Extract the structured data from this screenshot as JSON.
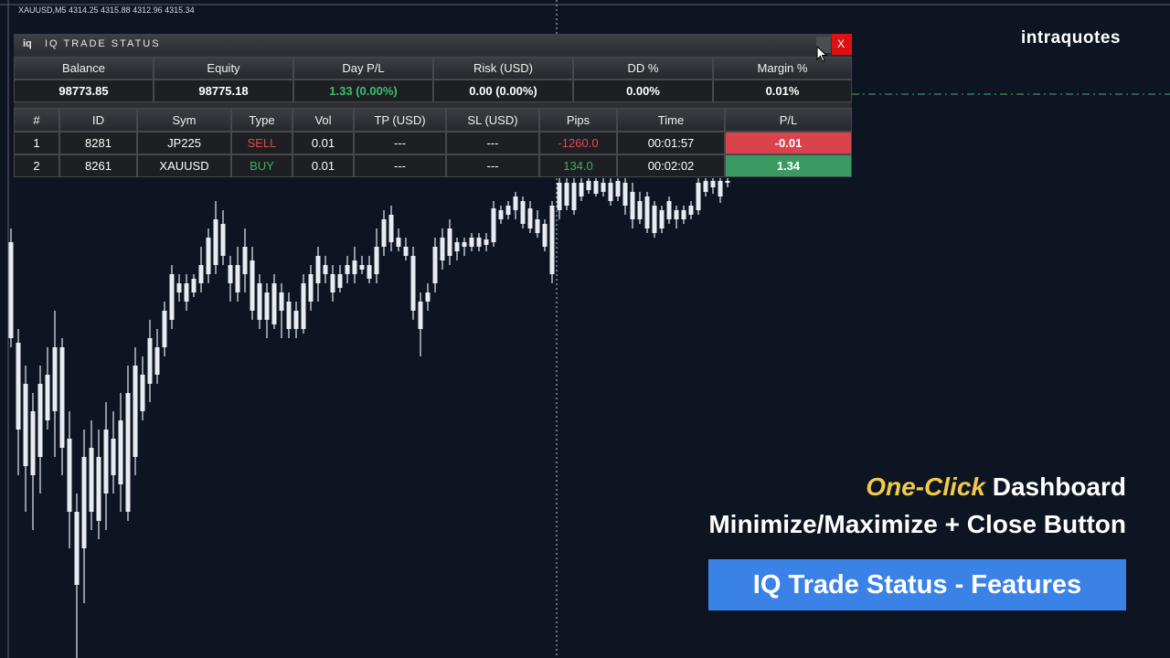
{
  "header": {
    "symbol_info": "XAUUSD,M5  4314.25 4315.88 4312.96 4315.34"
  },
  "panel": {
    "logo": "iq",
    "title": "IQ TRADE STATUS",
    "close": "X",
    "summary": {
      "columns": [
        "Balance",
        "Equity",
        "Day P/L",
        "Risk (USD)",
        "DD %",
        "Margin %"
      ],
      "values": [
        "98773.85",
        "98775.18",
        "1.33 (0.00%)",
        "0.00 (0.00%)",
        "0.00%",
        "0.01%"
      ]
    },
    "trades": {
      "columns": [
        "#",
        "ID",
        "Sym",
        "Type",
        "Vol",
        "TP (USD)",
        "SL (USD)",
        "Pips",
        "Time",
        "P/L"
      ],
      "rows": [
        [
          "1",
          "8281",
          "JP225",
          "SELL",
          "0.01",
          "---",
          "---",
          "-1260.0",
          "00:01:57",
          "-0.01"
        ],
        [
          "2",
          "8261",
          "XAUUSD",
          "BUY",
          "0.01",
          "---",
          "---",
          "134.0",
          "00:02:02",
          "1.34"
        ]
      ]
    }
  },
  "brand": "intraquotes",
  "caption": {
    "highlight": "One-Click",
    "line1": "Dashboard",
    "line2": "Minimize/Maximize + Close Button",
    "banner": "IQ Trade Status - Features"
  }
}
